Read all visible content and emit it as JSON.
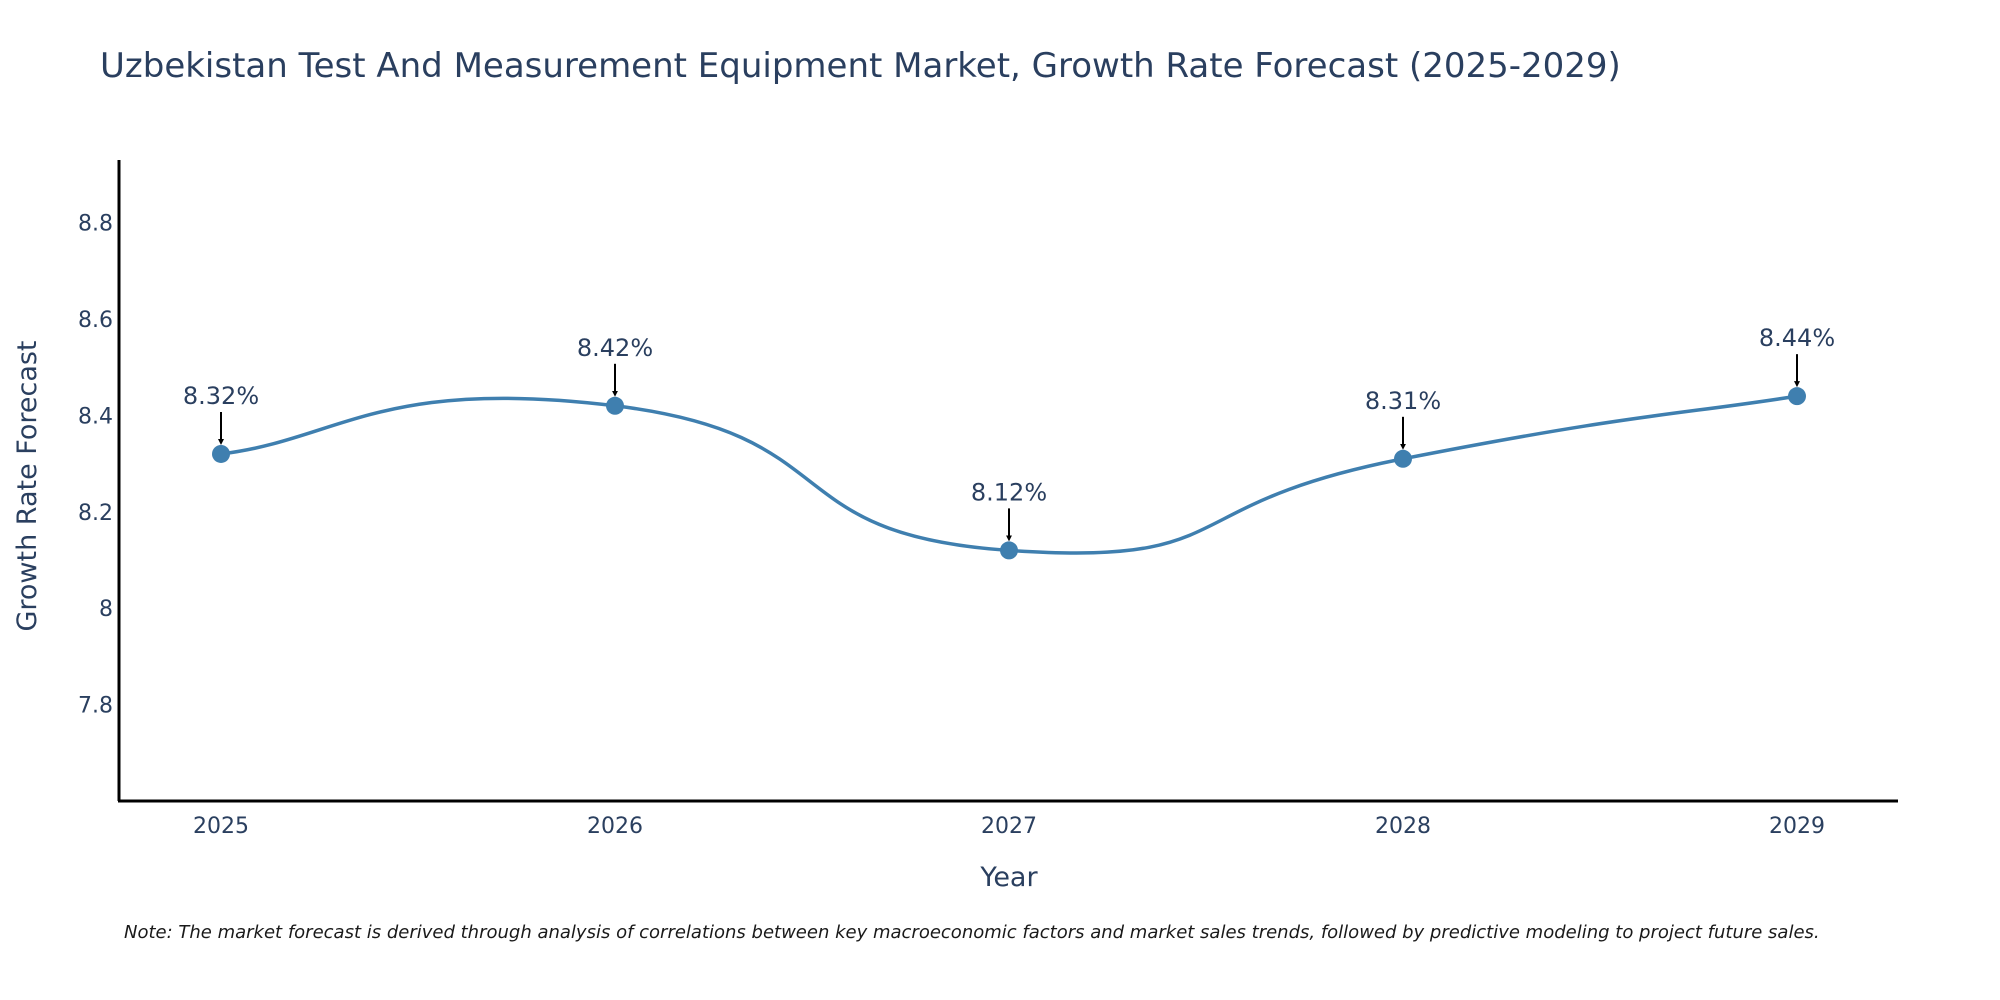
{
  "chart_data": {
    "type": "line",
    "title": "Uzbekistan Test And Measurement Equipment Market, Growth Rate Forecast (2025-2029)",
    "xlabel": "Year",
    "ylabel": "Growth Rate Forecast",
    "categories": [
      "2025",
      "2026",
      "2027",
      "2028",
      "2029"
    ],
    "series": [
      {
        "name": "Growth Rate Forecast",
        "values": [
          8.32,
          8.42,
          8.12,
          8.31,
          8.44
        ],
        "labels": [
          "8.32%",
          "8.42%",
          "8.12%",
          "8.31%",
          "8.44%"
        ],
        "color": "#3f7faf"
      }
    ],
    "ylim": [
      7.6,
      8.93
    ],
    "yticks": [
      7.8,
      8,
      8.2,
      8.4,
      8.6,
      8.8
    ],
    "ytick_labels": [
      "7.8",
      "8",
      "8.2",
      "8.4",
      "8.6",
      "8.8"
    ],
    "grid": false,
    "line_shape": "spline"
  },
  "note": "Note: The market forecast is derived through analysis of correlations between key macroeconomic factors and market sales trends, followed by predictive modeling to project future sales."
}
